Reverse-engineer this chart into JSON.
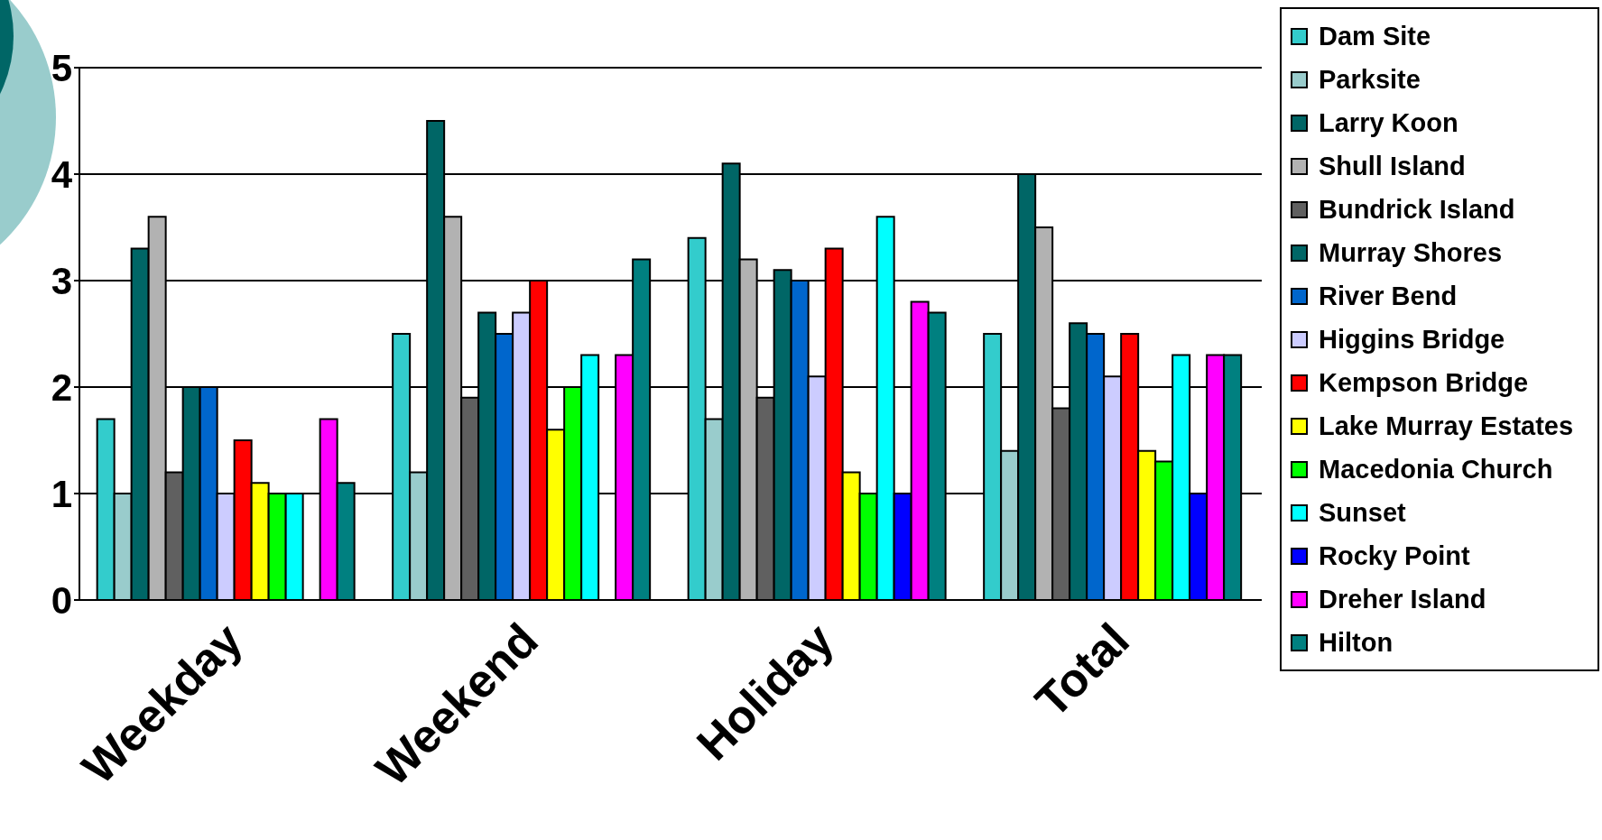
{
  "chart_data": {
    "type": "bar",
    "categories": [
      "Weekday",
      "Weekend",
      "Holiday",
      "Total"
    ],
    "series": [
      {
        "name": "Dam Site",
        "color": "#33cccc",
        "values": [
          1.7,
          2.5,
          3.4,
          2.5
        ]
      },
      {
        "name": "Parksite",
        "color": "#99cccc",
        "values": [
          1.0,
          1.2,
          1.7,
          1.4
        ]
      },
      {
        "name": "Larry Koon",
        "color": "#006666",
        "values": [
          3.3,
          4.5,
          4.1,
          4.0
        ]
      },
      {
        "name": "Shull Island",
        "color": "#b2b2b2",
        "values": [
          3.6,
          3.6,
          3.2,
          3.5
        ]
      },
      {
        "name": "Bundrick Island",
        "color": "#606060",
        "values": [
          1.2,
          1.9,
          1.9,
          1.8
        ]
      },
      {
        "name": "Murray Shores",
        "color": "#006666",
        "values": [
          2.0,
          2.7,
          3.1,
          2.6
        ]
      },
      {
        "name": "River Bend",
        "color": "#0066cc",
        "values": [
          2.0,
          2.5,
          3.0,
          2.5
        ]
      },
      {
        "name": "Higgins Bridge",
        "color": "#ccccff",
        "values": [
          1.0,
          2.7,
          2.1,
          2.1
        ]
      },
      {
        "name": "Kempson Bridge",
        "color": "#ff0000",
        "values": [
          1.5,
          3.0,
          3.3,
          2.5
        ]
      },
      {
        "name": "Lake Murray Estates",
        "color": "#ffff00",
        "values": [
          1.1,
          1.6,
          1.2,
          1.4
        ]
      },
      {
        "name": "Macedonia Church",
        "color": "#00ff00",
        "values": [
          1.0,
          2.0,
          1.0,
          1.3
        ]
      },
      {
        "name": "Sunset",
        "color": "#00ffff",
        "values": [
          1.0,
          2.3,
          3.6,
          2.3
        ]
      },
      {
        "name": "Rocky Point",
        "color": "#0000ff",
        "values": [
          null,
          null,
          1.0,
          1.0
        ]
      },
      {
        "name": "Dreher Island",
        "color": "#ff00ff",
        "values": [
          1.7,
          2.3,
          2.8,
          2.3
        ]
      },
      {
        "name": "Hilton",
        "color": "#008080",
        "values": [
          1.1,
          3.2,
          2.7,
          2.3
        ]
      }
    ],
    "ylim": [
      0,
      5
    ],
    "yticks": [
      0,
      1,
      2,
      3,
      4,
      5
    ],
    "grid": "y",
    "legend": "right"
  }
}
